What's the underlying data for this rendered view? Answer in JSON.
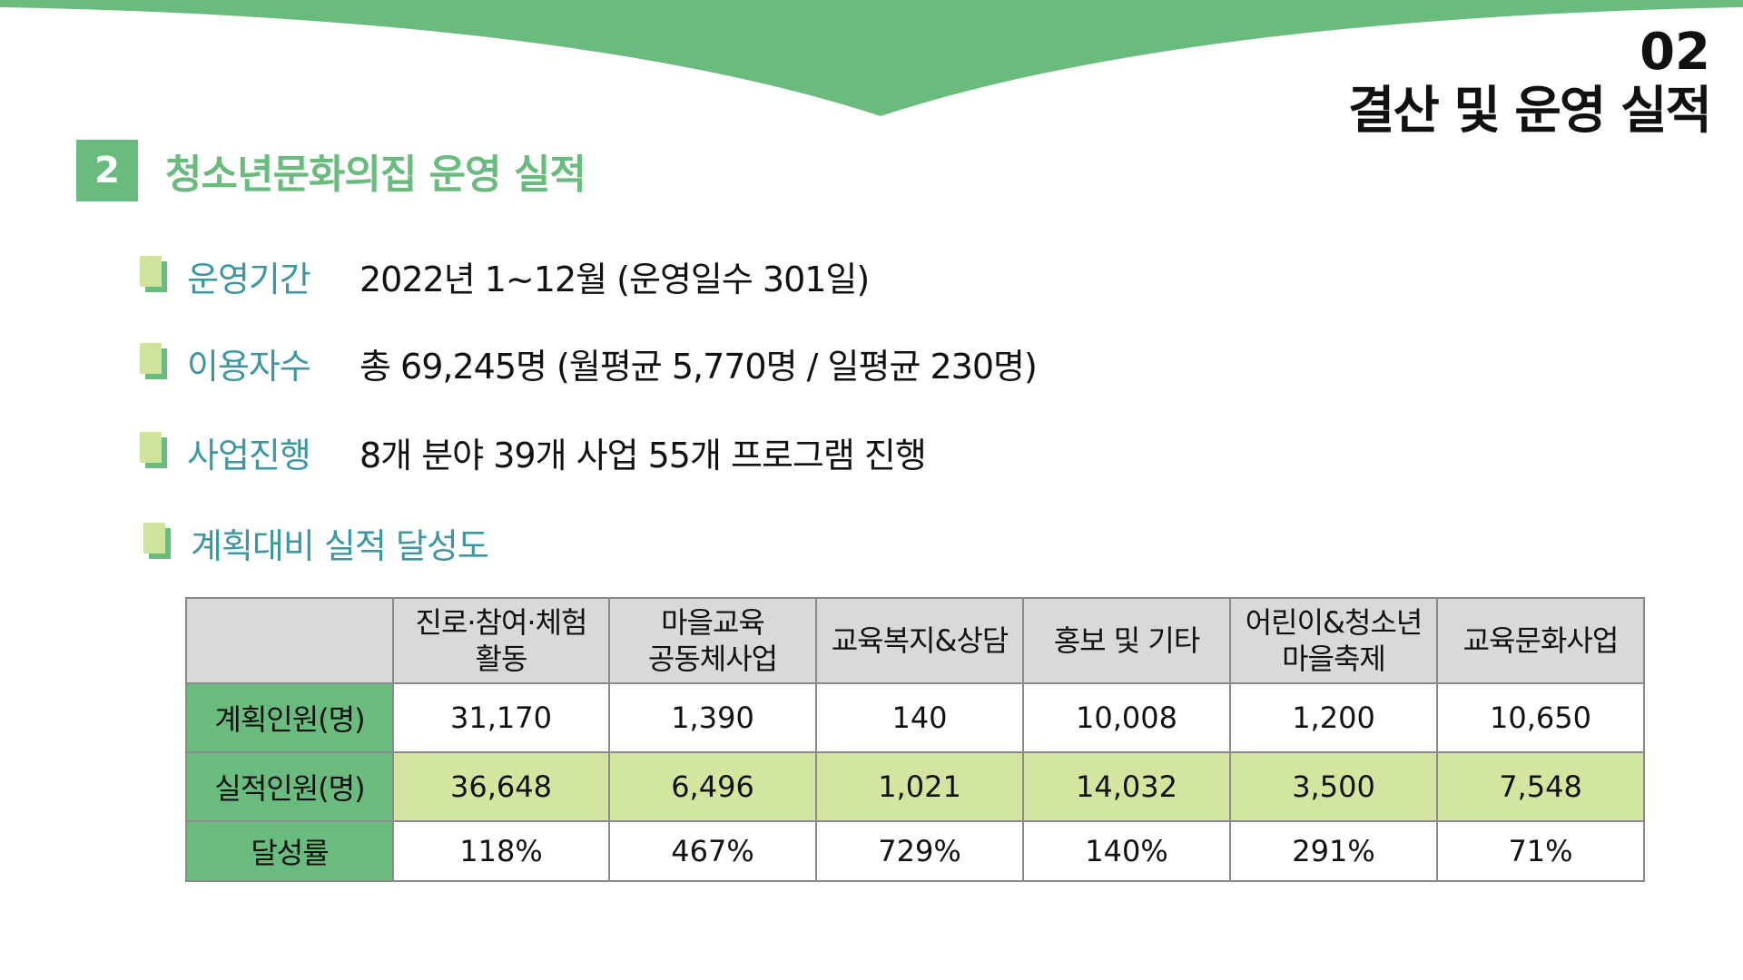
{
  "colors": {
    "accent_green": "#6abb7e",
    "light_green": "#cfe39b",
    "teal_label": "#3c97a0",
    "header_gray": "#d9d9d9",
    "actual_row": "#d3e6a0"
  },
  "chapter": {
    "number": "02",
    "title": "결산 및 운영 실적"
  },
  "section": {
    "number": "2",
    "title": "청소년문화의집 운영 실적"
  },
  "info": [
    {
      "label": "운영기간",
      "value": "2022년 1~12월 (운영일수 301일)"
    },
    {
      "label": "이용자수",
      "value": "총 69,245명 (월평균 5,770명 / 일평균 230명)"
    },
    {
      "label": "사업진행",
      "value": "8개 분야 39개 사업 55개 프로그램 진행"
    }
  ],
  "achievement_heading": "계획대비 실적 달성도",
  "table": {
    "columns": [
      {
        "line1": "진로·참여·체험",
        "line2": "활동"
      },
      {
        "line1": "마을교육",
        "line2": "공동체사업"
      },
      {
        "line1": "교육복지&상담",
        "line2": ""
      },
      {
        "line1": "홍보 및 기타",
        "line2": ""
      },
      {
        "line1": "어린이&청소년",
        "line2": "마을축제"
      },
      {
        "line1": "교육문화사업",
        "line2": ""
      }
    ],
    "rows": [
      {
        "label": "계획인원(명)",
        "values": [
          "31,170",
          "1,390",
          "140",
          "10,008",
          "1,200",
          "10,650"
        ]
      },
      {
        "label": "실적인원(명)",
        "values": [
          "36,648",
          "6,496",
          "1,021",
          "14,032",
          "3,500",
          "7,548"
        ]
      },
      {
        "label": "달성률",
        "values": [
          "118%",
          "467%",
          "729%",
          "140%",
          "291%",
          "71%"
        ]
      }
    ]
  }
}
